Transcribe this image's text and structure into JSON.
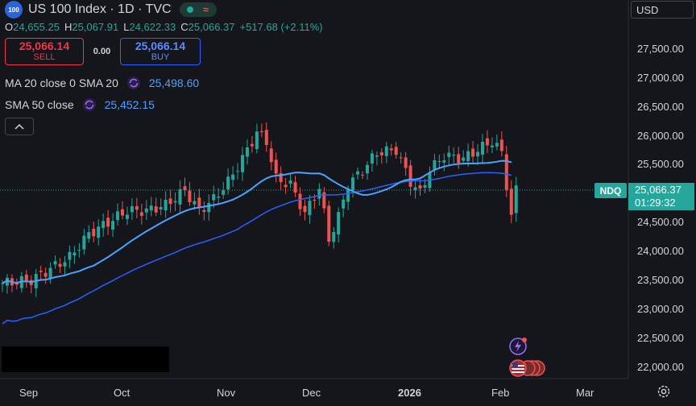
{
  "header": {
    "symbol_badge": "100",
    "title": "US 100 Index · 1D · TVC",
    "ohlc": {
      "o_label": "O",
      "o_value": "24,655.25",
      "h_label": "H",
      "h_value": "25,067.91",
      "l_label": "L",
      "l_value": "24,622.33",
      "c_label": "C",
      "c_value": "25,066.37",
      "change": "+517.68 (+2.11%)"
    },
    "status_icons": [
      "market-open-dot-icon",
      "wave-icon"
    ]
  },
  "trading": {
    "sell_price": "25,066.14",
    "sell_label": "SELL",
    "spread": "0.00",
    "buy_price": "25,066.14",
    "buy_label": "BUY"
  },
  "indicators": [
    {
      "label": "MA 20 close 0 SMA 20",
      "value": "25,498.60",
      "icon": "refresh-icon"
    },
    {
      "label": "SMA 50 close",
      "value": "25,452.15",
      "icon": "refresh-icon"
    }
  ],
  "price_axis": {
    "currency": "USD",
    "ticks": [
      "27,500.00",
      "27,000.00",
      "26,500.00",
      "26,000.00",
      "25,500.00",
      "24,500.00",
      "24,000.00",
      "23,500.00",
      "23,000.00",
      "22,500.00",
      "22,000.00"
    ],
    "current_symbol": "NDQ",
    "current_price": "25,066.37",
    "countdown": "01:29:32"
  },
  "time_axis": {
    "labels": [
      "Sep",
      "Oct",
      "Nov",
      "Dec",
      "2026",
      "Feb",
      "Mar"
    ]
  },
  "colors": {
    "background": "#14161c",
    "up": "#26a69a",
    "down": "#ef5350",
    "ma20": "#4aa3ff",
    "sma50": "#2962ff"
  }
}
